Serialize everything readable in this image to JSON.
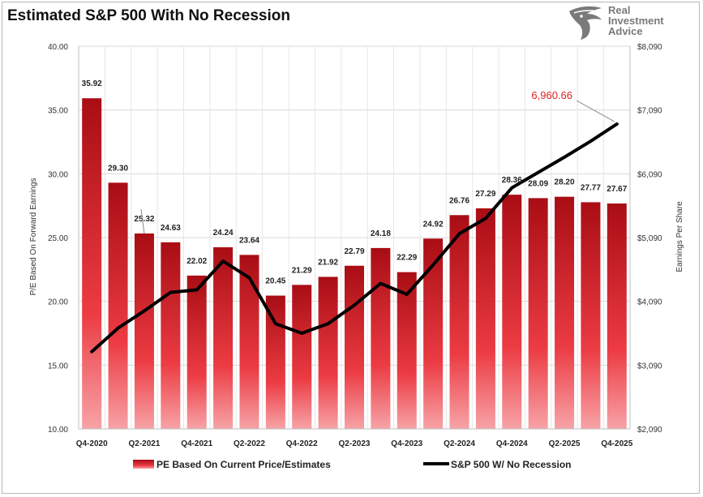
{
  "title": "Estimated S&P 500 With No Recession",
  "logo": {
    "text": "Real\nInvestment\nAdvice",
    "icon": "eagle-icon"
  },
  "chart_data": {
    "type": "bar",
    "title": "Estimated S&P 500 With No Recession",
    "xlabel": "",
    "ylabel": "P/E Based On Forward Earnings",
    "y2label": "Earnings Per Share",
    "ylim": [
      10,
      40
    ],
    "y2lim": [
      2090,
      8090
    ],
    "yticks": [
      "10.00",
      "15.00",
      "20.00",
      "25.00",
      "30.00",
      "35.00",
      "40.00"
    ],
    "y2ticks": [
      "$2,090",
      "$3,090",
      "$4,090",
      "$5,090",
      "$6,090",
      "$7,090",
      "$8,090"
    ],
    "categories": [
      "Q4-2020",
      "Q1-2021",
      "Q2-2021",
      "Q3-2021",
      "Q4-2021",
      "Q1-2022",
      "Q2-2022",
      "Q3-2022",
      "Q4-2022",
      "Q1-2023",
      "Q2-2023",
      "Q3-2023",
      "Q4-2023",
      "Q1-2024",
      "Q2-2024",
      "Q3-2024",
      "Q4-2024",
      "Q1-2025",
      "Q2-2025",
      "Q3-2025",
      "Q4-2025"
    ],
    "xtick_labels": [
      "Q4-2020",
      "",
      "Q2-2021",
      "",
      "Q4-2021",
      "",
      "Q2-2022",
      "",
      "Q4-2022",
      "",
      "Q2-2023",
      "",
      "Q4-2023",
      "",
      "Q2-2024",
      "",
      "Q4-2024",
      "",
      "Q2-2025",
      "",
      "Q4-2025"
    ],
    "series": [
      {
        "name": "PE Based On Current Price/Estimates",
        "type": "bar",
        "axis": "left",
        "values": [
          35.92,
          29.3,
          25.32,
          24.63,
          22.02,
          24.24,
          23.64,
          20.45,
          21.29,
          21.92,
          22.79,
          24.18,
          22.29,
          24.92,
          26.76,
          27.29,
          28.36,
          28.09,
          28.2,
          27.77,
          27.67
        ],
        "labels": [
          "35.92",
          "29.30",
          "25.32",
          "24.63",
          "22.02",
          "24.24",
          "23.64",
          "20.45",
          "21.29",
          "21.92",
          "22.79",
          "24.18",
          "22.29",
          "24.92",
          "26.76",
          "27.29",
          "28.36",
          "28.09",
          "28.20",
          "27.77",
          "27.67"
        ],
        "color": "#b5121b"
      },
      {
        "name": "S&P 500 W/ No Recession",
        "type": "line",
        "axis": "right",
        "values": [
          3300,
          3670,
          3940,
          4230,
          4270,
          4720,
          4460,
          3740,
          3590,
          3740,
          4030,
          4370,
          4200,
          4660,
          5150,
          5390,
          5870,
          6110,
          6350,
          6600,
          6870
        ],
        "color": "#000000"
      }
    ],
    "annotation": {
      "text": "6,960.66",
      "color": "#e02020",
      "series": "S&P 500 W/ No Recession",
      "index": 20
    },
    "grid": true,
    "legend": "bottom"
  }
}
